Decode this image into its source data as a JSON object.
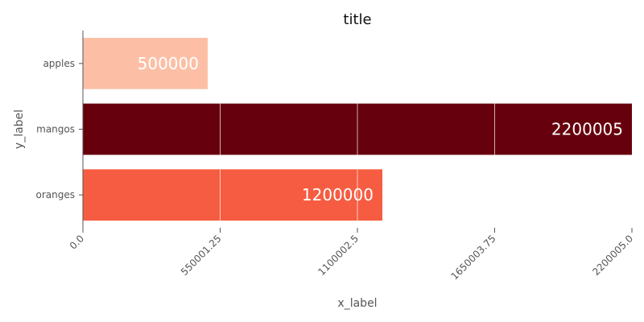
{
  "chart_data": {
    "type": "bar",
    "orientation": "horizontal",
    "title": "title",
    "xlabel": "x_label",
    "ylabel": "y_label",
    "categories": [
      "apples",
      "mangos",
      "oranges"
    ],
    "values": [
      500000,
      2200005,
      1200000
    ],
    "value_labels": [
      "500000",
      "2200005",
      "1200000"
    ],
    "colors": [
      "#fcbfa6",
      "#67000d",
      "#f65c41"
    ],
    "xlim": [
      0,
      2200005
    ],
    "xticks": [
      0,
      550001.25,
      1100002.5,
      1650003.75,
      2200005
    ],
    "xtick_labels": [
      "0.0",
      "550001.25",
      "1100002.5",
      "1650003.75",
      "2200005.0"
    ],
    "grid": "vertical, white",
    "legend": "none"
  }
}
